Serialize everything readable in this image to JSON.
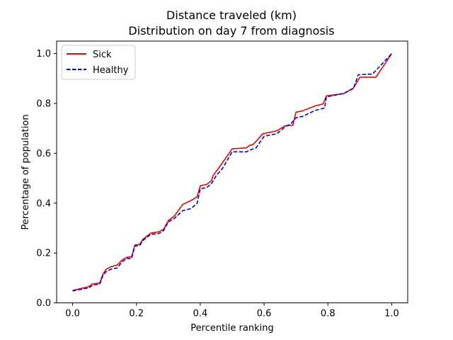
{
  "chart_data": {
    "type": "line",
    "title": "Distance traveled (km)",
    "subtitle": "Distribution on day 7 from diagnosis",
    "xlabel": "Percentile ranking",
    "ylabel": "Percentage of population",
    "xlim": [
      -0.05,
      1.05
    ],
    "ylim": [
      0.0,
      1.05
    ],
    "xticks": [
      {
        "value": 0.0,
        "label": "0.0"
      },
      {
        "value": 0.2,
        "label": "0.2"
      },
      {
        "value": 0.4,
        "label": "0.4"
      },
      {
        "value": 0.6,
        "label": "0.6"
      },
      {
        "value": 0.8,
        "label": "0.8"
      },
      {
        "value": 1.0,
        "label": "1.0"
      }
    ],
    "yticks": [
      {
        "value": 0.0,
        "label": "0.0"
      },
      {
        "value": 0.2,
        "label": "0.2"
      },
      {
        "value": 0.4,
        "label": "0.4"
      },
      {
        "value": 0.6,
        "label": "0.6"
      },
      {
        "value": 0.8,
        "label": "0.8"
      },
      {
        "value": 1.0,
        "label": "1.0"
      }
    ],
    "grid": false,
    "legend_position": "top-left",
    "series": [
      {
        "name": "Sick",
        "color": "#ff0000",
        "style": "solid",
        "points": [
          [
            0.0,
            0.05
          ],
          [
            0.05,
            0.065
          ],
          [
            0.06,
            0.075
          ],
          [
            0.085,
            0.08
          ],
          [
            0.095,
            0.115
          ],
          [
            0.105,
            0.135
          ],
          [
            0.12,
            0.145
          ],
          [
            0.14,
            0.152
          ],
          [
            0.155,
            0.172
          ],
          [
            0.17,
            0.183
          ],
          [
            0.185,
            0.185
          ],
          [
            0.195,
            0.232
          ],
          [
            0.21,
            0.235
          ],
          [
            0.22,
            0.255
          ],
          [
            0.245,
            0.28
          ],
          [
            0.27,
            0.285
          ],
          [
            0.285,
            0.295
          ],
          [
            0.3,
            0.33
          ],
          [
            0.32,
            0.35
          ],
          [
            0.345,
            0.395
          ],
          [
            0.37,
            0.41
          ],
          [
            0.39,
            0.425
          ],
          [
            0.4,
            0.47
          ],
          [
            0.42,
            0.475
          ],
          [
            0.435,
            0.49
          ],
          [
            0.44,
            0.51
          ],
          [
            0.46,
            0.545
          ],
          [
            0.5,
            0.618
          ],
          [
            0.545,
            0.622
          ],
          [
            0.555,
            0.632
          ],
          [
            0.565,
            0.635
          ],
          [
            0.58,
            0.655
          ],
          [
            0.595,
            0.678
          ],
          [
            0.62,
            0.685
          ],
          [
            0.64,
            0.69
          ],
          [
            0.665,
            0.71
          ],
          [
            0.69,
            0.712
          ],
          [
            0.7,
            0.765
          ],
          [
            0.72,
            0.77
          ],
          [
            0.76,
            0.79
          ],
          [
            0.785,
            0.798
          ],
          [
            0.795,
            0.83
          ],
          [
            0.85,
            0.84
          ],
          [
            0.88,
            0.862
          ],
          [
            0.9,
            0.905
          ],
          [
            0.95,
            0.905
          ],
          [
            1.0,
            1.0
          ]
        ]
      },
      {
        "name": "Healthy",
        "color": "#0000ff",
        "style": "dashed",
        "points": [
          [
            0.0,
            0.048
          ],
          [
            0.05,
            0.06
          ],
          [
            0.065,
            0.072
          ],
          [
            0.085,
            0.075
          ],
          [
            0.095,
            0.11
          ],
          [
            0.105,
            0.125
          ],
          [
            0.12,
            0.135
          ],
          [
            0.14,
            0.14
          ],
          [
            0.155,
            0.165
          ],
          [
            0.17,
            0.178
          ],
          [
            0.185,
            0.178
          ],
          [
            0.195,
            0.228
          ],
          [
            0.21,
            0.23
          ],
          [
            0.22,
            0.25
          ],
          [
            0.245,
            0.275
          ],
          [
            0.27,
            0.278
          ],
          [
            0.285,
            0.29
          ],
          [
            0.3,
            0.325
          ],
          [
            0.32,
            0.34
          ],
          [
            0.345,
            0.37
          ],
          [
            0.37,
            0.378
          ],
          [
            0.39,
            0.398
          ],
          [
            0.4,
            0.458
          ],
          [
            0.42,
            0.462
          ],
          [
            0.435,
            0.478
          ],
          [
            0.45,
            0.51
          ],
          [
            0.47,
            0.54
          ],
          [
            0.5,
            0.606
          ],
          [
            0.545,
            0.606
          ],
          [
            0.56,
            0.615
          ],
          [
            0.575,
            0.622
          ],
          [
            0.59,
            0.65
          ],
          [
            0.6,
            0.668
          ],
          [
            0.625,
            0.675
          ],
          [
            0.64,
            0.678
          ],
          [
            0.665,
            0.705
          ],
          [
            0.685,
            0.72
          ],
          [
            0.7,
            0.742
          ],
          [
            0.72,
            0.748
          ],
          [
            0.76,
            0.772
          ],
          [
            0.79,
            0.782
          ],
          [
            0.795,
            0.826
          ],
          [
            0.85,
            0.84
          ],
          [
            0.88,
            0.86
          ],
          [
            0.895,
            0.915
          ],
          [
            0.94,
            0.918
          ],
          [
            1.0,
            1.0
          ]
        ]
      }
    ]
  }
}
